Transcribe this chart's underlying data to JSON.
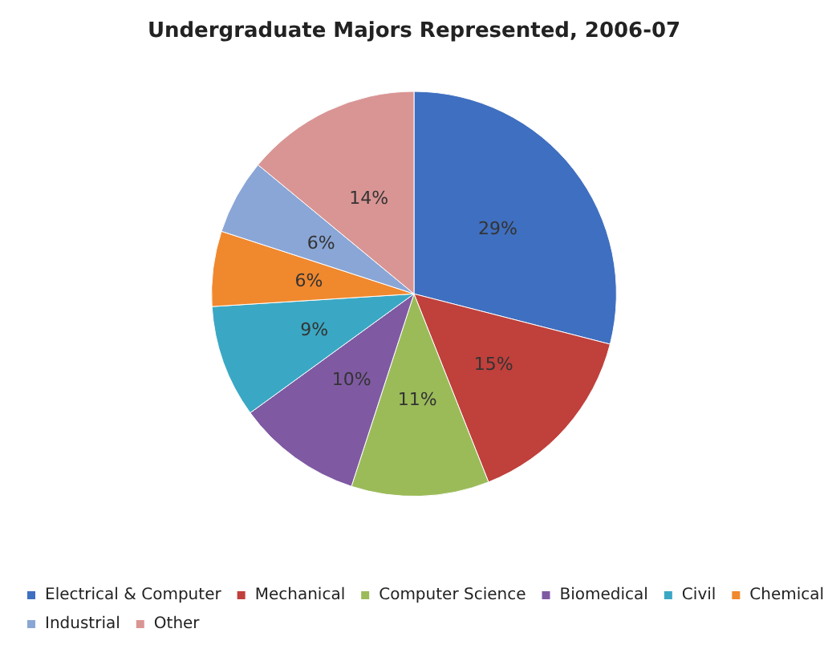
{
  "chart_data": {
    "type": "pie",
    "title": "Undergraduate Majors Represented, 2006-07",
    "categories": [
      "Electrical & Computer",
      "Mechanical",
      "Computer Science",
      "Biomedical",
      "Civil",
      "Chemical",
      "Industrial",
      "Other"
    ],
    "values": [
      29,
      15,
      11,
      10,
      9,
      6,
      6,
      14
    ],
    "value_labels": [
      "29%",
      "15%",
      "11%",
      "10%",
      "9%",
      "6%",
      "6%",
      "14%"
    ],
    "colors": [
      "#3f6fc0",
      "#c0403c",
      "#9bbb59",
      "#7f5aa2",
      "#3aa8c4",
      "#f0882e",
      "#8aa6d6",
      "#d99594"
    ],
    "legend": "bottom"
  }
}
